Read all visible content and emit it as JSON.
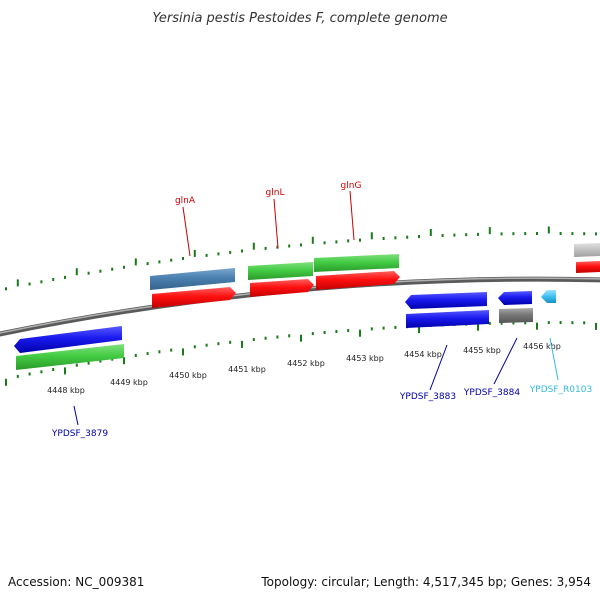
{
  "title": "Yersinia pestis Pestoides F, complete genome",
  "footer": {
    "accession": "Accession: NC_009381",
    "summary": "Topology: circular; Length: 4,517,345 bp; Genes: 3,954"
  },
  "colors": {
    "backbone": "#888888",
    "tick": "#1a7a1a",
    "label_red": "#cc0000",
    "label_blue": "#0000aa",
    "label_cyan": "#33bbdd"
  },
  "ticks": [
    {
      "label": "4448 kbp"
    },
    {
      "label": "4449 kbp"
    },
    {
      "label": "4450 kbp"
    },
    {
      "label": "4451 kbp"
    },
    {
      "label": "4452 kbp"
    },
    {
      "label": "4453 kbp"
    },
    {
      "label": "4454 kbp"
    },
    {
      "label": "4455 kbp"
    },
    {
      "label": "4456 kbp"
    }
  ],
  "labels": [
    {
      "text": "glnA",
      "color": "#cc0000"
    },
    {
      "text": "glnL",
      "color": "#cc0000"
    },
    {
      "text": "glnG",
      "color": "#cc0000"
    },
    {
      "text": "YPDSF_3879",
      "color": "#0000aa"
    },
    {
      "text": "YPDSF_3883",
      "color": "#0000aa"
    },
    {
      "text": "YPDSF_3884",
      "color": "#0000aa"
    },
    {
      "text": "YPDSF_R0103",
      "color": "#33bbdd"
    }
  ]
}
